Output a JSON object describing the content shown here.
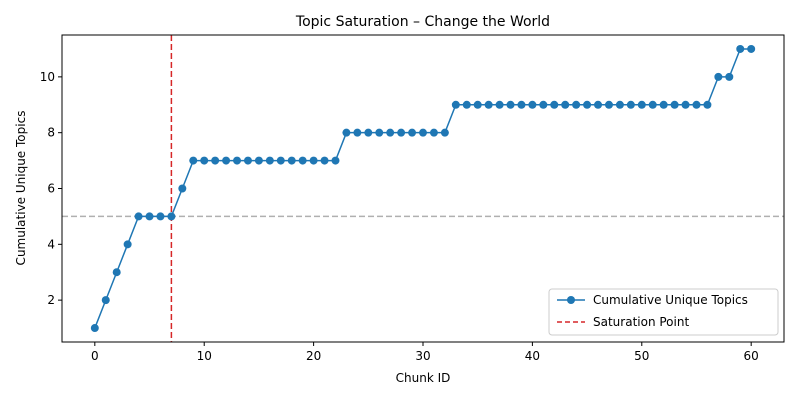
{
  "chart_data": {
    "type": "line",
    "title": "Topic Saturation – Change the World",
    "xlabel": "Chunk ID",
    "ylabel": "Cumulative Unique Topics",
    "xlim": [
      -3,
      63
    ],
    "ylim": [
      0.5,
      11.5
    ],
    "xticks": [
      0,
      10,
      20,
      30,
      40,
      50,
      60
    ],
    "yticks": [
      2,
      4,
      6,
      8,
      10
    ],
    "grid": false,
    "legend_position": "lower-right",
    "series": [
      {
        "name": "Cumulative Unique Topics",
        "color": "#1f77b4",
        "marker": "circle",
        "x": [
          0,
          1,
          2,
          3,
          4,
          5,
          6,
          7,
          8,
          9,
          10,
          11,
          12,
          13,
          14,
          15,
          16,
          17,
          18,
          19,
          20,
          21,
          22,
          23,
          24,
          25,
          26,
          27,
          28,
          29,
          30,
          31,
          32,
          33,
          34,
          35,
          36,
          37,
          38,
          39,
          40,
          41,
          42,
          43,
          44,
          45,
          46,
          47,
          48,
          49,
          50,
          51,
          52,
          53,
          54,
          55,
          56,
          57,
          58,
          59,
          60
        ],
        "values": [
          1,
          2,
          3,
          4,
          5,
          5,
          5,
          5,
          6,
          7,
          7,
          7,
          7,
          7,
          7,
          7,
          7,
          7,
          7,
          7,
          7,
          7,
          7,
          8,
          8,
          8,
          8,
          8,
          8,
          8,
          8,
          8,
          8,
          9,
          9,
          9,
          9,
          9,
          9,
          9,
          9,
          9,
          9,
          9,
          9,
          9,
          9,
          9,
          9,
          9,
          9,
          9,
          9,
          9,
          9,
          9,
          9,
          10,
          10,
          11,
          11
        ]
      }
    ],
    "reference_lines": [
      {
        "name": "Saturation Point",
        "orientation": "vertical",
        "value": 7,
        "color": "#d62728",
        "style": "dashed",
        "in_legend": true
      },
      {
        "orientation": "horizontal",
        "value": 5,
        "color": "#b0b0b0",
        "style": "dashed",
        "in_legend": false
      }
    ]
  }
}
